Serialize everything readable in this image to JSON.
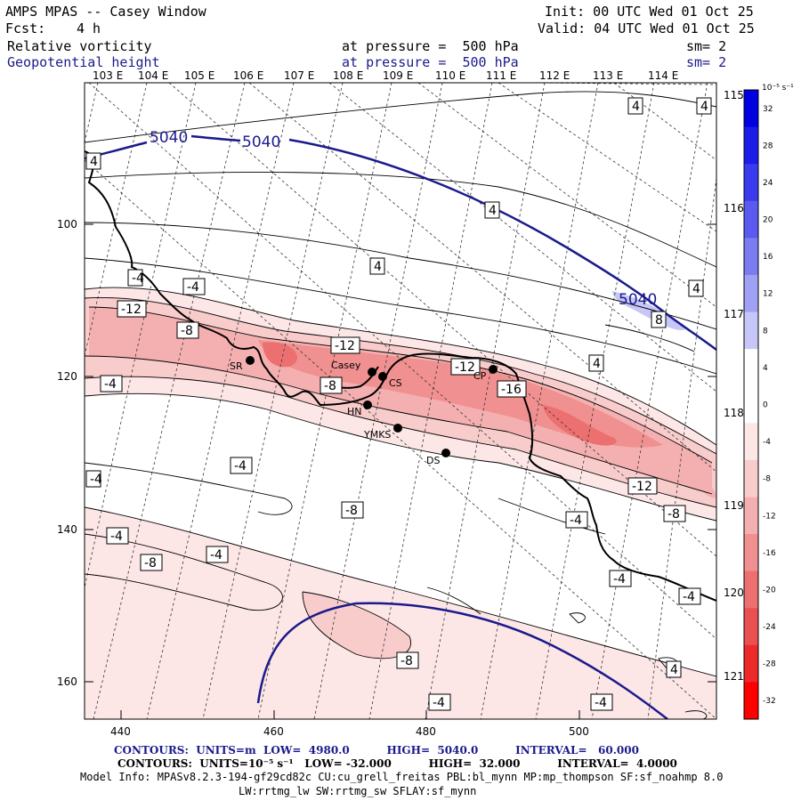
{
  "header": {
    "title": "AMPS MPAS -- Casey Window",
    "init": "Init: 00 UTC Wed 01 Oct 25",
    "fcst_label": "Fcst:",
    "fcst_value": "4 h",
    "valid": "Valid: 04 UTC Wed 01 Oct 25",
    "field1_name": "Relative vorticity",
    "field1_level": "at pressure =  500 hPa",
    "field1_sm": "sm= 2",
    "field2_name": "Geopotential height",
    "field2_level": "at pressure =  500 hPa",
    "field2_sm": "sm= 2"
  },
  "lon_top_labels": [
    "103 E",
    "104 E",
    "105 E",
    "106 E",
    "107 E",
    "108 E",
    "109 E",
    "110 E",
    "111 E",
    "112 E",
    "113 E",
    "114 E"
  ],
  "lon_right_labels": [
    "115 E",
    "116 E",
    "117 E",
    "118 E",
    "119 E",
    "120 E",
    "121 E"
  ],
  "x_ticks": [
    "440",
    "460",
    "480",
    "500"
  ],
  "y_ticks": [
    "100",
    "120",
    "140",
    "160"
  ],
  "stations": [
    "SR",
    "Casey",
    "CS",
    "CP",
    "HN",
    "YMKS",
    "DS"
  ],
  "height_labels": [
    "5040",
    "5040",
    "5040"
  ],
  "vort_labels": [
    "4",
    "4",
    "4",
    "4",
    "4",
    "4",
    "4",
    "-4",
    "-12",
    "-8",
    "-12",
    "-8",
    "-12",
    "-16",
    "-4",
    "-4",
    "-4",
    "-4",
    "-8",
    "-12",
    "-4",
    "-4",
    "-8",
    "-4",
    "-4",
    "-8",
    "-4",
    "-4",
    "-4",
    "8"
  ],
  "colorbar": {
    "unit": "10⁻⁵ s⁻¹",
    "labels": [
      "32",
      "28",
      "24",
      "20",
      "16",
      "12",
      "8",
      "4",
      "0",
      "-4",
      "-8",
      "-12",
      "-16",
      "-20",
      "-24",
      "-28",
      "-32"
    ],
    "colors": [
      "#0000e0",
      "#1c1ce8",
      "#3a3aee",
      "#5a5af0",
      "#7c7cf2",
      "#a0a0f4",
      "#c6c6f8",
      "#ffffff",
      "#ffffff",
      "#fde6e6",
      "#f9cccc",
      "#f4b0b0",
      "#f09090",
      "#ec7070",
      "#ea5050",
      "#ec2a2a",
      "#ff0000"
    ]
  },
  "footer": {
    "height_contours": "CONTOURS:  UNITS=m  LOW=  4980.0          HIGH=  5040.0          INTERVAL=   60.000",
    "vort_contours": "CONTOURS:  UNITS=10⁻⁵ s⁻¹   LOW= -32.000          HIGH=  32.000          INTERVAL=  4.0000",
    "model_info_1": "Model Info: MPASv8.2.3-194-gf29cd82c CU:cu_grell_freitas PBL:bl_mynn MP:mp_thompson SF:sf_noahmp 8.0",
    "model_info_2": "LW:rrtmg_lw SW:rrtmg_sw SFLAY:sf_mynn"
  },
  "colors": {
    "height_contour": "#1a1a8c",
    "vort_neg": "#ec4c4c",
    "vort_pos": "#3a3aee"
  }
}
